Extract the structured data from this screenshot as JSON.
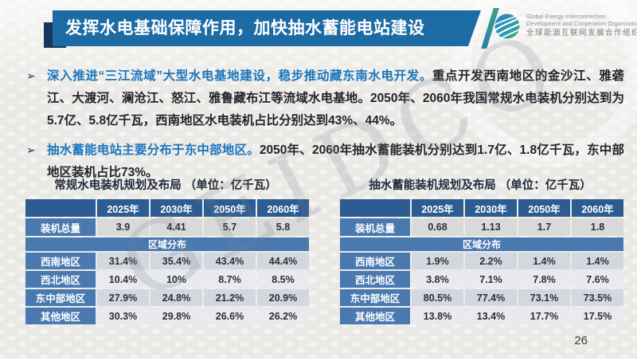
{
  "slide": {
    "title": "发挥水电基础保障作用，加快抽水蓄能电站建设",
    "page_number": "26",
    "watermark": "GEIDCO",
    "bullet_marker": "➢"
  },
  "logo": {
    "line1": "Global Energy Interconnection",
    "line2": "Development and Cooperation Organization",
    "line3": "全球能源互联网发展合作组织"
  },
  "bullets": [
    {
      "highlight": "深入推进“三江流域”大型水电基地建设，稳步推动藏东南水电开发。",
      "body": "重点开发西南地区的金沙江、雅砻江、大渡河、澜沧江、怒江、雅鲁藏布江等流域水电基地。2050年、2060年我国常规水电装机分别达到为5.7亿、5.8亿千瓦，西南地区水电装机占比分别达到43%、44%。"
    },
    {
      "highlight": "抽水蓄能电站主要分布于东中部地区。",
      "body": "2050年、2060年抽水蓄能装机分别达到1.7亿、1.8亿千瓦，东中部地区装机占比73%。"
    }
  ],
  "tables": [
    {
      "title": "常规水电装机规划及布局 （单位：亿千瓦）",
      "columns": [
        "",
        "2025年",
        "2030年",
        "2050年",
        "2060年"
      ],
      "total_row": {
        "label": "装机总量",
        "values": [
          "3.9",
          "4.41",
          "5.7",
          "5.8"
        ]
      },
      "section_row": "区域分布",
      "rows": [
        {
          "label": "西南地区",
          "values": [
            "31.4%",
            "35.4%",
            "43.4%",
            "44.4%"
          ]
        },
        {
          "label": "西北地区",
          "values": [
            "10.4%",
            "10%",
            "8.7%",
            "8.5%"
          ]
        },
        {
          "label": "东中部地区",
          "values": [
            "27.9%",
            "24.8%",
            "21.2%",
            "20.9%"
          ]
        },
        {
          "label": "其他地区",
          "values": [
            "30.3%",
            "29.8%",
            "26.6%",
            "26.2%"
          ]
        }
      ]
    },
    {
      "title": "抽水蓄能装机规划及布局 （单位：亿千瓦）",
      "columns": [
        "",
        "2025年",
        "2030年",
        "2050年",
        "2060年"
      ],
      "total_row": {
        "label": "装机总量",
        "values": [
          "0.68",
          "1.13",
          "1.7",
          "1.8"
        ]
      },
      "section_row": "区域分布",
      "rows": [
        {
          "label": "西南地区",
          "values": [
            "1.9%",
            "2.2%",
            "1.4%",
            "1.4%"
          ]
        },
        {
          "label": "西北地区",
          "values": [
            "3.8%",
            "7.1%",
            "7.8%",
            "7.6%"
          ]
        },
        {
          "label": "东中部地区",
          "values": [
            "80.5%",
            "77.4%",
            "73.1%",
            "73.5%"
          ]
        },
        {
          "label": "其他地区",
          "values": [
            "13.8%",
            "13.4%",
            "17.7%",
            "17.5%"
          ]
        }
      ]
    }
  ],
  "colors": {
    "title_bar_blue": "#1d6ba4",
    "accent_navy": "#17375e",
    "stripe_teal": "#3aa08c",
    "highlight_blue": "#1a75bd",
    "table_header_blue": "#2c5c92",
    "table_label_blue": "#4a79b0",
    "cell_gray": "#d9d9d9",
    "background": "#eae9e5"
  }
}
